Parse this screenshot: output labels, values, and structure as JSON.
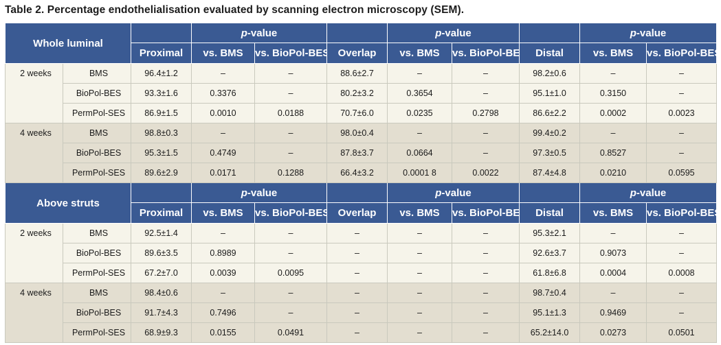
{
  "caption": "Table 2. Percentage endothelialisation evaluated by scanning electron microscopy (SEM).",
  "pvalue_prefix": "p",
  "pvalue_suffix": "-value",
  "col_headers": [
    "Proximal",
    "vs. BMS",
    "vs. BioPol-BES",
    "Overlap",
    "vs. BMS",
    "vs. BioPol-BES",
    "Distal",
    "vs. BMS",
    "vs. BioPol-BES"
  ],
  "sections": [
    {
      "title": "Whole luminal",
      "groups": [
        {
          "time": "2 weeks",
          "rows": [
            {
              "device": "BMS",
              "values": [
                "96.4±1.2",
                "–",
                "–",
                "88.6±2.7",
                "–",
                "–",
                "98.2±0.6",
                "–",
                "–"
              ]
            },
            {
              "device": "BioPol-BES",
              "values": [
                "93.3±1.6",
                "0.3376",
                "–",
                "80.2±3.2",
                "0.3654",
                "–",
                "95.1±1.0",
                "0.3150",
                "–"
              ]
            },
            {
              "device": "PermPol-SES",
              "values": [
                "86.9±1.5",
                "0.0010",
                "0.0188",
                "70.7±6.0",
                "0.0235",
                "0.2798",
                "86.6±2.2",
                "0.0002",
                "0.0023"
              ]
            }
          ]
        },
        {
          "time": "4 weeks",
          "rows": [
            {
              "device": "BMS",
              "values": [
                "98.8±0.3",
                "–",
                "–",
                "98.0±0.4",
                "–",
                "–",
                "99.4±0.2",
                "–",
                "–"
              ]
            },
            {
              "device": "BioPol-BES",
              "values": [
                "95.3±1.5",
                "0.4749",
                "–",
                "87.8±3.7",
                "0.0664",
                "–",
                "97.3±0.5",
                "0.8527",
                "–"
              ]
            },
            {
              "device": "PermPol-SES",
              "values": [
                "89.6±2.9",
                "0.0171",
                "0.1288",
                "66.4±3.2",
                "0.0001 8",
                "0.0022",
                "87.4±4.8",
                "0.0210",
                "0.0595"
              ]
            }
          ]
        }
      ]
    },
    {
      "title": "Above struts",
      "groups": [
        {
          "time": "2 weeks",
          "rows": [
            {
              "device": "BMS",
              "values": [
                "92.5±1.4",
                "–",
                "–",
                "–",
                "–",
                "–",
                "95.3±2.1",
                "–",
                "–"
              ]
            },
            {
              "device": "BioPol-BES",
              "values": [
                "89.6±3.5",
                "0.8989",
                "–",
                "–",
                "–",
                "–",
                "92.6±3.7",
                "0.9073",
                "–"
              ]
            },
            {
              "device": "PermPol-SES",
              "values": [
                "67.2±7.0",
                "0.0039",
                "0.0095",
                "–",
                "–",
                "–",
                "61.8±6.8",
                "0.0004",
                "0.0008"
              ]
            }
          ]
        },
        {
          "time": "4 weeks",
          "rows": [
            {
              "device": "BMS",
              "values": [
                "98.4±0.6",
                "–",
                "–",
                "–",
                "–",
                "–",
                "98.7±0.4",
                "–",
                "–"
              ]
            },
            {
              "device": "BioPol-BES",
              "values": [
                "91.7±4.3",
                "0.7496",
                "–",
                "–",
                "–",
                "–",
                "95.1±1.3",
                "0.9469",
                "–"
              ]
            },
            {
              "device": "PermPol-SES",
              "values": [
                "68.9±9.3",
                "0.0155",
                "0.0491",
                "–",
                "–",
                "–",
                "65.2±14.0",
                "0.0273",
                "0.0501"
              ]
            }
          ]
        }
      ]
    }
  ]
}
